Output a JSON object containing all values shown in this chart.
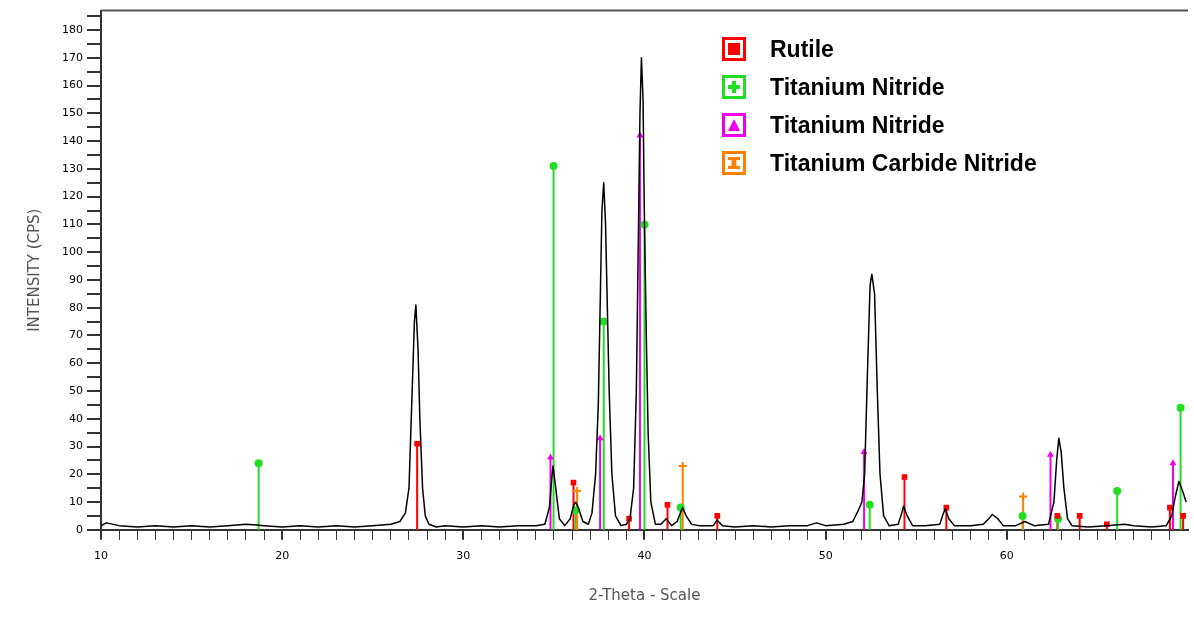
{
  "chart_data": {
    "type": "line",
    "xlabel": "2-Theta - Scale",
    "ylabel": "INTENSITY (CPS)",
    "xlim": [
      10,
      70
    ],
    "ylim": [
      0,
      187
    ],
    "xticks": [
      10,
      {
        "value": 11,
        "label": null
      },
      {
        "value": 12,
        "label": null
      },
      {
        "value": 13,
        "label": null
      },
      {
        "value": 14,
        "label": null
      },
      {
        "value": 15,
        "label": null
      },
      {
        "value": 16,
        "label": null
      },
      {
        "value": 17,
        "label": null
      },
      {
        "value": 18,
        "label": null
      },
      {
        "value": 19,
        "label": null
      },
      20,
      {
        "value": 21,
        "label": null
      },
      {
        "value": 22,
        "label": null
      },
      {
        "value": 23,
        "label": null
      },
      {
        "value": 24,
        "label": null
      },
      {
        "value": 25,
        "label": null
      },
      {
        "value": 26,
        "label": null
      },
      {
        "value": 27,
        "label": null
      },
      {
        "value": 28,
        "label": null
      },
      {
        "value": 29,
        "label": null
      },
      30,
      {
        "value": 31,
        "label": null
      },
      {
        "value": 32,
        "label": null
      },
      {
        "value": 33,
        "label": null
      },
      {
        "value": 34,
        "label": null
      },
      {
        "value": 35,
        "label": null
      },
      {
        "value": 36,
        "label": null
      },
      {
        "value": 37,
        "label": null
      },
      {
        "value": 38,
        "label": null
      },
      {
        "value": 39,
        "label": null
      },
      40,
      {
        "value": 41,
        "label": null
      },
      {
        "value": 42,
        "label": null
      },
      {
        "value": 43,
        "label": null
      },
      {
        "value": 44,
        "label": null
      },
      {
        "value": 45,
        "label": null
      },
      {
        "value": 46,
        "label": null
      },
      {
        "value": 47,
        "label": null
      },
      {
        "value": 48,
        "label": null
      },
      {
        "value": 49,
        "label": null
      },
      50,
      {
        "value": 51,
        "label": null
      },
      {
        "value": 52,
        "label": null
      },
      {
        "value": 53,
        "label": null
      },
      {
        "value": 54,
        "label": null
      },
      {
        "value": 55,
        "label": null
      },
      {
        "value": 56,
        "label": null
      },
      {
        "value": 57,
        "label": null
      },
      {
        "value": 58,
        "label": null
      },
      {
        "value": 59,
        "label": null
      },
      60,
      {
        "value": 61,
        "label": null
      },
      {
        "value": 62,
        "label": null
      },
      {
        "value": 63,
        "label": null
      },
      {
        "value": 64,
        "label": null
      },
      {
        "value": 65,
        "label": null
      },
      {
        "value": 66,
        "label": null
      },
      {
        "value": 67,
        "label": null
      },
      {
        "value": 68,
        "label": null
      },
      {
        "value": 69,
        "label": null
      }
    ],
    "yticks": [
      0,
      {
        "value": 5,
        "label": null
      },
      10,
      {
        "value": 15,
        "label": null
      },
      20,
      {
        "value": 25,
        "label": null
      },
      30,
      {
        "value": 35,
        "label": null
      },
      40,
      {
        "value": 45,
        "label": null
      },
      50,
      {
        "value": 55,
        "label": null
      },
      60,
      {
        "value": 65,
        "label": null
      },
      70,
      {
        "value": 75,
        "label": null
      },
      80,
      {
        "value": 85,
        "label": null
      },
      90,
      {
        "value": 95,
        "label": null
      },
      100,
      {
        "value": 105,
        "label": null
      },
      110,
      {
        "value": 115,
        "label": null
      },
      120,
      {
        "value": 125,
        "label": null
      },
      130,
      {
        "value": 135,
        "label": null
      },
      140,
      {
        "value": 145,
        "label": null
      },
      150,
      {
        "value": 155,
        "label": null
      },
      160,
      {
        "value": 165,
        "label": null
      },
      170,
      {
        "value": 175,
        "label": null
      },
      180,
      {
        "value": 185,
        "label": null
      }
    ],
    "legend": "top right",
    "grid": false,
    "series": [
      {
        "type": "line",
        "color": "#000000",
        "marker": "none",
        "x": [
          10,
          10.3,
          11,
          12,
          13,
          14,
          15,
          16,
          17,
          18,
          19,
          20,
          21,
          22,
          23,
          24,
          25,
          26,
          26.5,
          26.8,
          27.0,
          27.15,
          27.3,
          27.38,
          27.5,
          27.6,
          27.75,
          27.9,
          28.1,
          28.5,
          29,
          30,
          31,
          32,
          33,
          34,
          34.5,
          34.75,
          34.9,
          34.95,
          35.1,
          35.3,
          35.6,
          35.9,
          36.1,
          36.2,
          36.35,
          36.6,
          36.9,
          37.1,
          37.3,
          37.45,
          37.55,
          37.65,
          37.75,
          37.85,
          37.95,
          38.05,
          38.2,
          38.4,
          38.7,
          39.0,
          39.2,
          39.4,
          39.55,
          39.65,
          39.75,
          39.83,
          39.92,
          40.0,
          40.1,
          40.2,
          40.35,
          40.6,
          40.9,
          41.2,
          41.5,
          41.8,
          42.1,
          42.3,
          42.6,
          43,
          43.8,
          44,
          44.3,
          45,
          46,
          47,
          48,
          49,
          49.5,
          50,
          51,
          51.5,
          51.8,
          52.0,
          52.15,
          52.3,
          52.45,
          52.55,
          52.7,
          52.85,
          53.0,
          53.2,
          53.5,
          54.0,
          54.2,
          54.3,
          54.5,
          54.8,
          55.5,
          56.3,
          56.5,
          56.6,
          56.8,
          57.1,
          58,
          58.7,
          59.0,
          59.2,
          59.5,
          59.8,
          60.5,
          61,
          61.5,
          62.3,
          62.6,
          62.75,
          62.87,
          63.0,
          63.15,
          63.35,
          63.6,
          64.5,
          65.5,
          66.5,
          67,
          68,
          68.8,
          69.1,
          69.3,
          69.5,
          69.7,
          69.9
        ],
        "values": [
          1.5,
          2.5,
          1.5,
          1,
          1.5,
          1,
          1.5,
          1,
          1.5,
          2,
          1.5,
          1,
          1.5,
          1,
          1.5,
          1,
          1.5,
          2,
          3,
          6,
          15,
          45,
          75,
          81,
          65,
          40,
          15,
          5,
          2,
          1,
          1.5,
          1,
          1.5,
          1,
          1.5,
          1.5,
          2,
          8,
          20,
          23,
          15,
          4,
          1.5,
          4,
          9,
          10,
          8,
          3,
          2,
          6,
          20,
          45,
          80,
          115,
          125,
          110,
          80,
          50,
          20,
          5,
          1.5,
          2,
          4,
          15,
          50,
          100,
          150,
          170,
          155,
          110,
          70,
          35,
          10,
          2,
          2,
          4,
          1.5,
          3,
          8,
          5,
          2,
          1.5,
          1.5,
          3.5,
          1.5,
          1,
          1.5,
          1,
          1.5,
          1.5,
          2.5,
          1.5,
          2,
          3,
          7,
          10,
          20,
          55,
          88,
          92,
          85,
          50,
          20,
          5,
          1.5,
          2,
          6,
          8.5,
          5,
          1.5,
          1.5,
          2,
          6,
          7.5,
          4,
          1.5,
          1.5,
          2,
          4,
          5.5,
          4,
          1.5,
          1.5,
          3,
          1.5,
          2,
          10,
          25,
          33,
          28,
          15,
          4,
          1.5,
          1,
          1.5,
          2,
          1.5,
          1,
          1.5,
          5,
          12,
          17.5,
          14,
          10
        ]
      },
      {
        "type": "lollipop",
        "name": "Rutile",
        "color": "#ff0000",
        "marker": "square",
        "x": [
          27.45,
          36.08,
          39.15,
          41.27,
          44.02,
          54.35,
          56.66,
          62.79,
          64.02,
          65.52,
          69.0,
          69.73
        ],
        "values": [
          31,
          17,
          4,
          9,
          5,
          19,
          8,
          5,
          5,
          2,
          8,
          5
        ]
      },
      {
        "type": "lollipop",
        "name": "Titanium Nitride",
        "color": "#22dd22",
        "marker": "circle",
        "x": [
          18.7,
          34.98,
          36.2,
          37.75,
          40.0,
          42.0,
          52.43,
          60.87,
          62.83,
          66.09,
          69.59
        ],
        "values": [
          24,
          131,
          7,
          75,
          110,
          8,
          9,
          5,
          4,
          14,
          44
        ]
      },
      {
        "type": "lollipop",
        "name": "Titanium Nitride",
        "color": "#ee00ee",
        "marker": "triangle",
        "x": [
          34.81,
          37.55,
          39.75,
          52.12,
          62.41,
          69.17
        ],
        "values": [
          26,
          33,
          142,
          28,
          27,
          24
        ]
      },
      {
        "type": "lollipop",
        "name": "Titanium Carbide Nitride",
        "color": "#ff8000",
        "marker": "cross",
        "x": [
          36.28,
          42.11,
          60.9
        ],
        "values": [
          14,
          23,
          12
        ]
      }
    ]
  }
}
